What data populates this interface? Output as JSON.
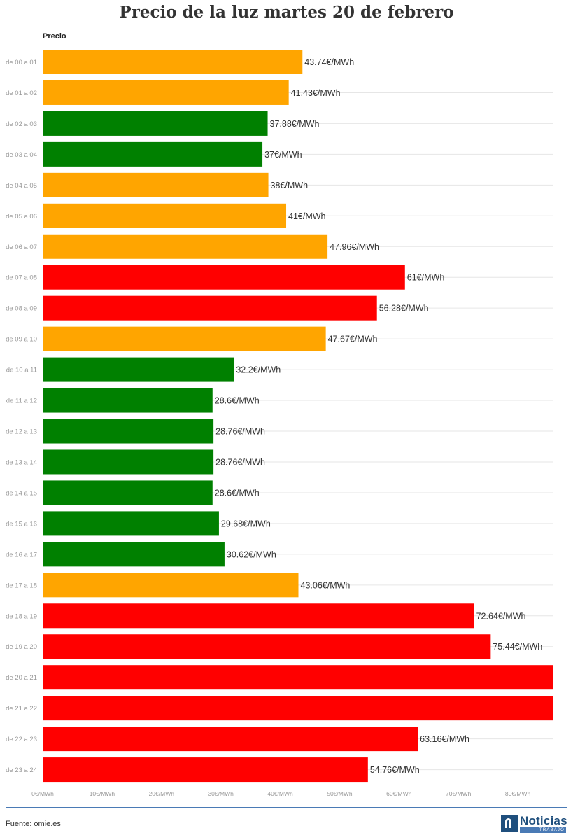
{
  "header": {
    "title": "Precio de la luz martes 20 de febrero"
  },
  "legend": {
    "series_label": "Precio"
  },
  "footer": {
    "source": "Fuente: omie.es",
    "logo_name": "Noticias",
    "logo_sub": "TRABAJO"
  },
  "colors": {
    "green": "#008000",
    "orange": "#FFA500",
    "red": "#FF0000",
    "grid": "#e6e6e6",
    "text": "#333333",
    "axis_text": "#999999"
  },
  "chart_data": {
    "type": "bar",
    "orientation": "horizontal",
    "title": "Precio de la luz martes 20 de febrero",
    "xlabel": "",
    "ylabel": "",
    "series_name": "Precio",
    "value_unit": "€/MWh",
    "xlim": [
      0,
      86
    ],
    "grid": true,
    "x_ticks": [
      0,
      10,
      20,
      30,
      40,
      50,
      60,
      70,
      80
    ],
    "x_tick_labels": [
      "0€/MWh",
      "10€/MWh",
      "20€/MWh",
      "30€/MWh",
      "40€/MWh",
      "50€/MWh",
      "60€/MWh",
      "70€/MWh",
      "80€/MWh"
    ],
    "categories": [
      "de 00 a 01",
      "de 01 a 02",
      "de 02 a 03",
      "de 03 a 04",
      "de 04 a 05",
      "de 05 a 06",
      "de 06 a 07",
      "de 07 a 08",
      "de 08 a 09",
      "de 09 a 10",
      "de 10 a 11",
      "de 11 a 12",
      "de 12 a 13",
      "de 13 a 14",
      "de 14 a 15",
      "de 15 a 16",
      "de 16 a 17",
      "de 17 a 18",
      "de 18 a 19",
      "de 19 a 20",
      "de 20 a 21",
      "de 21 a 22",
      "de 22 a 23",
      "de 23 a 24"
    ],
    "values": [
      43.74,
      41.43,
      37.88,
      37,
      38,
      41,
      47.96,
      61,
      56.28,
      47.67,
      32.2,
      28.6,
      28.76,
      28.76,
      28.6,
      29.68,
      30.62,
      43.06,
      72.64,
      75.44,
      86,
      86,
      63.16,
      54.76
    ],
    "value_labels": [
      "43.74€/MWh",
      "41.43€/MWh",
      "37.88€/MWh",
      "37€/MWh",
      "38€/MWh",
      "41€/MWh",
      "47.96€/MWh",
      "61€/MWh",
      "56.28€/MWh",
      "47.67€/MWh",
      "32.2€/MWh",
      "28.6€/MWh",
      "28.76€/MWh",
      "28.76€/MWh",
      "28.6€/MWh",
      "29.68€/MWh",
      "30.62€/MWh",
      "43.06€/MWh",
      "72.64€/MWh",
      "75.44€/MWh",
      "",
      "",
      "63.16€/MWh",
      "54.76€/MWh"
    ],
    "bar_colors": [
      "orange",
      "orange",
      "green",
      "green",
      "orange",
      "orange",
      "orange",
      "red",
      "red",
      "orange",
      "green",
      "green",
      "green",
      "green",
      "green",
      "green",
      "green",
      "orange",
      "red",
      "red",
      "red",
      "red",
      "red",
      "red"
    ]
  }
}
